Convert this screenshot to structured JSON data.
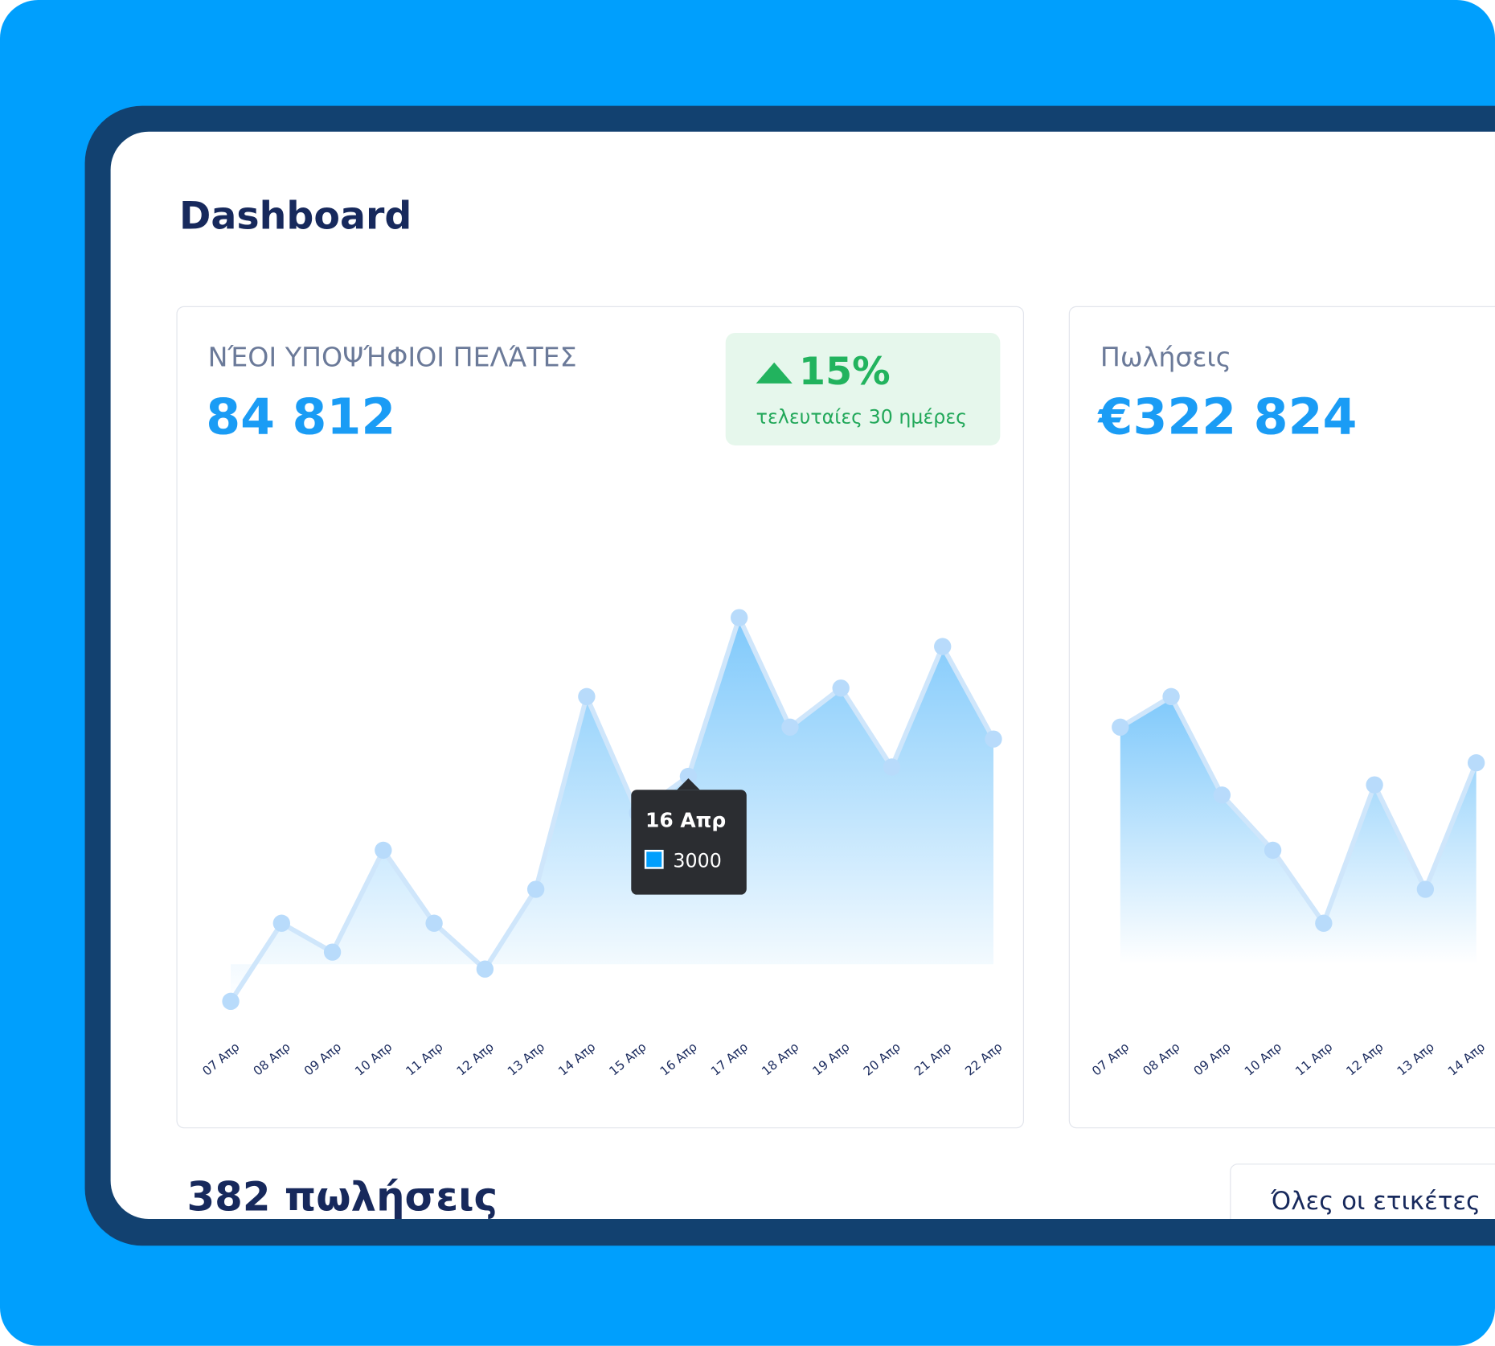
{
  "header": {
    "title": "Dashboard"
  },
  "cards": [
    {
      "title": "ΝΈΟΙ ΥΠΟΨΉΦΙΟΙ ΠΕΛΆΤΕΣ",
      "value": "84 812",
      "badge": {
        "change": "15%",
        "period": "τελευταίες 30 ημέρες"
      },
      "chart": {
        "type": "area",
        "color": "#2aa5f8",
        "ylim": [
          0,
          6000
        ],
        "categories": [
          "07 Απρ",
          "08 Απρ",
          "09 Απρ",
          "10 Απρ",
          "11 Απρ",
          "12 Απρ",
          "13 Απρ",
          "14 Απρ",
          "15 Απρ",
          "16 Απρ",
          "17 Απρ",
          "18 Απρ",
          "19 Απρ",
          "20 Απρ",
          "21 Απρ",
          "22 Απρ"
        ],
        "values": [
          350,
          1270,
          930,
          2130,
          1270,
          730,
          1670,
          3940,
          2570,
          3000,
          4870,
          3580,
          4040,
          3110,
          4530,
          3440
        ],
        "tooltip_index": 9
      }
    },
    {
      "title": "Πωλήσεις",
      "value": "€322 824",
      "chart": {
        "type": "area",
        "color": "#2aa5f8",
        "ylim": [
          0,
          6000
        ],
        "categories": [
          "07 Απρ",
          "08 Απρ",
          "09 Απρ",
          "10 Απρ",
          "11 Απρ",
          "12 Απρ",
          "13 Απρ",
          "14 Απρ"
        ],
        "values": [
          3580,
          3940,
          2780,
          2130,
          1270,
          2900,
          1670,
          3160
        ]
      }
    }
  ],
  "footer": {
    "sales": "382 πωλήσεις",
    "filter": "Όλες οι ετικέτες"
  }
}
